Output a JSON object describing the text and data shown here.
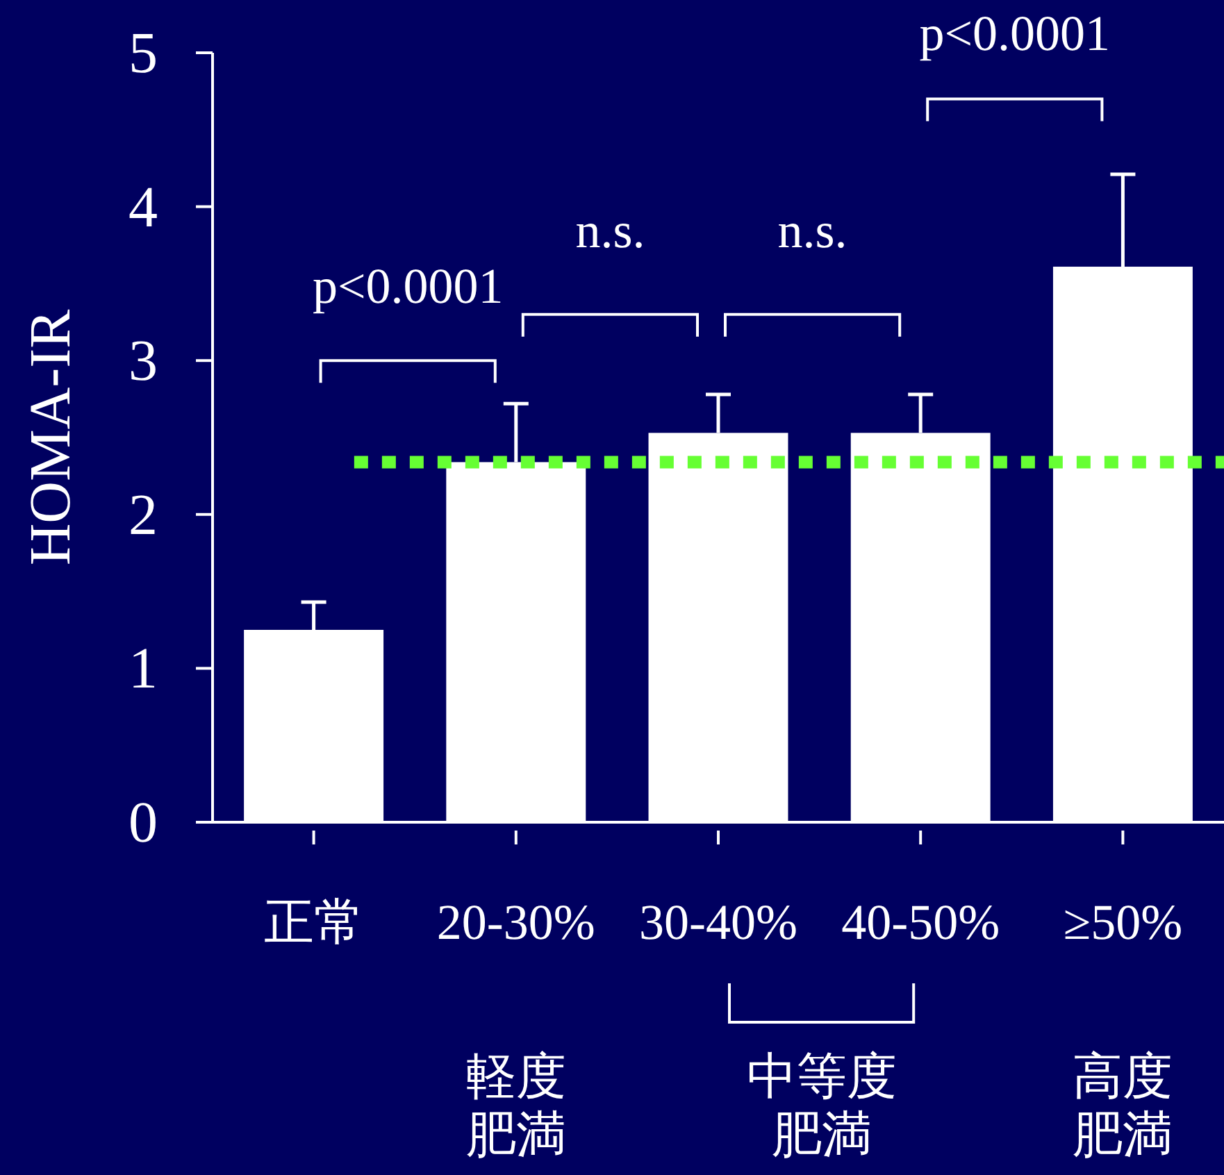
{
  "chart_data": {
    "type": "bar",
    "ylabel": "HOMA-IR",
    "categories": [
      "正常",
      "20-30%",
      "30-40%",
      "40-50%",
      "≥50%"
    ],
    "values": [
      1.25,
      2.34,
      2.53,
      2.53,
      3.61
    ],
    "errors": [
      [
        1.25,
        1.43
      ],
      [
        2.34,
        2.72
      ],
      [
        2.53,
        2.78
      ],
      [
        2.53,
        2.78
      ],
      [
        3.61,
        4.21
      ]
    ],
    "color": "#ffffff",
    "ylim": [
      0,
      5
    ],
    "yticks": [
      0,
      1,
      2,
      3,
      4,
      5
    ],
    "grid": false,
    "ref_lines": [
      {
        "axis": "y",
        "value": 2.34,
        "color": "#66ff33",
        "line_style": "dotted"
      }
    ],
    "annotations": [
      "p<0.0001",
      "n.s.",
      "n.s.",
      "p<0.0001",
      "軽度",
      "肥満",
      "中等度",
      "肥満",
      "高度",
      "肥満"
    ]
  }
}
